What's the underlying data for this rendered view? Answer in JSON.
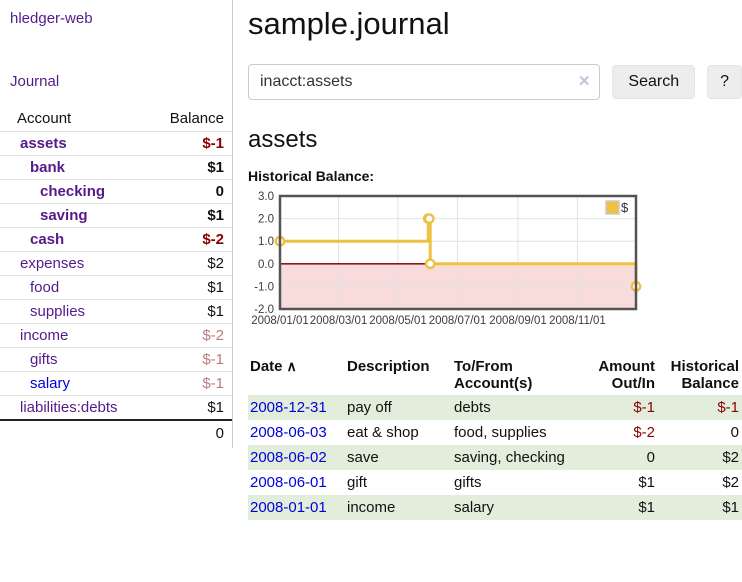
{
  "app": {
    "title": "hledger-web",
    "nav_journal": "Journal"
  },
  "colors": {
    "link_purple": "#551a8b",
    "link_blue": "#0000dd",
    "negative_red": "#8b0000",
    "faded_red": "#bd7b7b",
    "row_highlight_green": "#e2eedb",
    "chart_line_gold": "#edc240"
  },
  "sidebar": {
    "table_headers": {
      "account": "Account",
      "balance": "Balance"
    },
    "accounts": [
      {
        "name": "assets",
        "indent": 0,
        "bold": true,
        "balance": "$-1",
        "negative": true,
        "faded": false,
        "unvisited": false
      },
      {
        "name": "bank",
        "indent": 1,
        "bold": true,
        "balance": "$1",
        "negative": false,
        "faded": false,
        "unvisited": false
      },
      {
        "name": "checking",
        "indent": 2,
        "bold": true,
        "balance": "0",
        "negative": false,
        "faded": false,
        "unvisited": false
      },
      {
        "name": "saving",
        "indent": 2,
        "bold": true,
        "balance": "$1",
        "negative": false,
        "faded": false,
        "unvisited": false
      },
      {
        "name": "cash",
        "indent": 1,
        "bold": true,
        "balance": "$-2",
        "negative": true,
        "faded": false,
        "unvisited": false
      },
      {
        "name": "expenses",
        "indent": 0,
        "bold": false,
        "balance": "$2",
        "negative": false,
        "faded": false,
        "unvisited": false
      },
      {
        "name": "food",
        "indent": 1,
        "bold": false,
        "balance": "$1",
        "negative": false,
        "faded": false,
        "unvisited": false
      },
      {
        "name": "supplies",
        "indent": 1,
        "bold": false,
        "balance": "$1",
        "negative": false,
        "faded": false,
        "unvisited": false
      },
      {
        "name": "income",
        "indent": 0,
        "bold": false,
        "balance": "$-2",
        "negative": true,
        "faded": true,
        "unvisited": false
      },
      {
        "name": "gifts",
        "indent": 1,
        "bold": false,
        "balance": "$-1",
        "negative": true,
        "faded": true,
        "unvisited": false
      },
      {
        "name": "salary",
        "indent": 1,
        "bold": false,
        "balance": "$-1",
        "negative": true,
        "faded": true,
        "unvisited": true
      },
      {
        "name": "liabilities:debts",
        "indent": 0,
        "bold": false,
        "balance": "$1",
        "negative": false,
        "faded": false,
        "unvisited": false
      }
    ],
    "total": "0"
  },
  "header": {
    "title": "sample.journal"
  },
  "search": {
    "value": "inacct:assets",
    "clear_icon": "✕",
    "button": "Search",
    "help_button": "?"
  },
  "account_page": {
    "heading": "assets",
    "chart_label": "Historical Balance:"
  },
  "chart_data": {
    "type": "line",
    "step": true,
    "title": "Historical Balance: assets",
    "series_name": "$",
    "points": [
      {
        "date": "2008-01-01",
        "day": 0,
        "value": 1.0
      },
      {
        "date": "2008-06-01",
        "day": 152,
        "value": 2.0
      },
      {
        "date": "2008-06-02",
        "day": 153,
        "value": 2.0
      },
      {
        "date": "2008-06-03",
        "day": 154,
        "value": 0.0
      },
      {
        "date": "2008-12-31",
        "day": 365,
        "value": -1.0
      }
    ],
    "xlim_days": [
      0,
      365
    ],
    "ylim": [
      -2,
      3
    ],
    "y_ticks": [
      3,
      2,
      1,
      0,
      -1,
      -2
    ],
    "x_ticks": [
      {
        "label": "2008/01/01",
        "day": 0
      },
      {
        "label": "2008/03/01",
        "day": 60
      },
      {
        "label": "2008/05/01",
        "day": 121
      },
      {
        "label": "2008/07/01",
        "day": 182
      },
      {
        "label": "2008/09/01",
        "day": 244
      },
      {
        "label": "2008/11/01",
        "day": 305
      }
    ],
    "grid": true,
    "legend": {
      "label": "$",
      "position": "top-right"
    },
    "line_color": "#edc240",
    "marker_fill": "#ffffff",
    "negative_region_color": "#f8dbdb",
    "zero_line_color": "#8b1a1a",
    "plot_border_color": "#545454",
    "grid_color": "#e2e2e2",
    "tick_text_color": "#3c3c3c"
  },
  "register": {
    "headers": {
      "date": "Date",
      "sort_icon": "∧",
      "description": "Description",
      "tofrom": "To/From\nAccount(s)",
      "amount": "Amount\nOut/In",
      "balance": "Historical\nBalance"
    },
    "rows": [
      {
        "date": "2008-12-31",
        "description": "pay off",
        "accounts": "debts",
        "amount": "$-1",
        "amount_negative": true,
        "balance": "$-1",
        "balance_negative": true,
        "highlight": true
      },
      {
        "date": "2008-06-03",
        "description": "eat & shop",
        "accounts": "food, supplies",
        "amount": "$-2",
        "amount_negative": true,
        "balance": "0",
        "balance_negative": false,
        "highlight": false
      },
      {
        "date": "2008-06-02",
        "description": "save",
        "accounts": "saving, checking",
        "amount": "0",
        "amount_negative": false,
        "balance": "$2",
        "balance_negative": false,
        "highlight": true
      },
      {
        "date": "2008-06-01",
        "description": "gift",
        "accounts": "gifts",
        "amount": "$1",
        "amount_negative": false,
        "balance": "$2",
        "balance_negative": false,
        "highlight": false
      },
      {
        "date": "2008-01-01",
        "description": "income",
        "accounts": "salary",
        "amount": "$1",
        "amount_negative": false,
        "balance": "$1",
        "balance_negative": false,
        "highlight": true
      }
    ]
  }
}
